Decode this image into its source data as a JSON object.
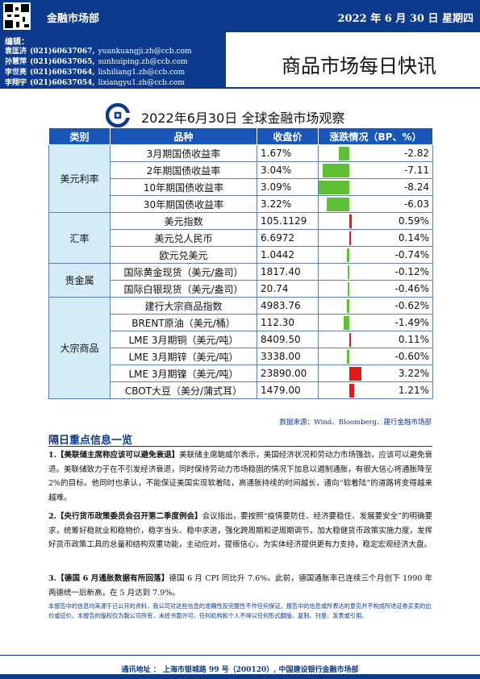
{
  "header": {
    "dept": "金融市场部",
    "date": "2022 年 6 月 30 日  星期四"
  },
  "editors": {
    "label": "编辑：",
    "list": [
      {
        "name": "袁匡济",
        "phone": "(021)60637067,",
        "email": "yuankuangji.zh@ccb.com"
      },
      {
        "name": "孙慧萍",
        "phone": "(021)60637065,",
        "email": "sunhuiping.zh@ccb.com"
      },
      {
        "name": "李世亮",
        "phone": "(021)60637064,",
        "email": "lishiliang1.zh@ccb.com"
      },
      {
        "name": "李翔宇",
        "phone": "(021)60637054,",
        "email": "lixiangyu1.zh@ccb.com"
      }
    ]
  },
  "report_title": "商品市场每日快讯",
  "table": {
    "title": "2022年6月30日 全球金融市场观察",
    "headers": [
      "类别",
      "品种",
      "收盘价",
      "涨跌情况（BP、%）"
    ],
    "groups": [
      {
        "category": "美元利率",
        "rows": [
          {
            "item": "3月期国债收益率",
            "price": "1.67%",
            "change": "-2.82",
            "value": -2.82
          },
          {
            "item": "2年期国债收益率",
            "price": "3.04%",
            "change": "-7.11",
            "value": -7.11
          },
          {
            "item": "10年期国债收益率",
            "price": "3.09%",
            "change": "-8.24",
            "value": -8.24
          },
          {
            "item": "30年期国债收益率",
            "price": "3.22%",
            "change": "-6.03",
            "value": -6.03
          }
        ]
      },
      {
        "category": "汇率",
        "rows": [
          {
            "item": "美元指数",
            "price": "105.1129",
            "change": "0.59%",
            "value": 0.59
          },
          {
            "item": "美元兑人民币",
            "price": "6.6972",
            "change": "0.14%",
            "value": 0.14
          },
          {
            "item": "欧元兑美元",
            "price": "1.0442",
            "change": "-0.74%",
            "value": -0.74
          }
        ]
      },
      {
        "category": "贵金属",
        "rows": [
          {
            "item": "国际黄金现货（美元/盎司）",
            "price": "1817.40",
            "change": "-0.12%",
            "value": -0.12
          },
          {
            "item": "国际白银现货（美元/盎司）",
            "price": "20.74",
            "change": "-0.46%",
            "value": -0.46
          }
        ]
      },
      {
        "category": "大宗商品",
        "rows": [
          {
            "item": "建行大宗商品指数",
            "price": "4983.76",
            "change": "-0.62%",
            "value": -0.62
          },
          {
            "item": "BRENT原油（美元/桶）",
            "price": "112.30",
            "change": "-1.49%",
            "value": -1.49
          },
          {
            "item": "LME 3月期铜（美元/吨）",
            "price": "8409.50",
            "change": "0.11%",
            "value": 0.11
          },
          {
            "item": "LME 3月期锌（美元/吨）",
            "price": "3338.00",
            "change": "-0.60%",
            "value": -0.6
          },
          {
            "item": "LME 3月期镍（美元/吨）",
            "price": "23890.00",
            "change": "3.22%",
            "value": 3.22
          },
          {
            "item": "CBOT大豆（美分/蒲式耳）",
            "price": "1479.00",
            "change": "1.21%",
            "value": 1.21
          }
        ]
      }
    ],
    "source": "数据来源：Wind、Bloomberg、建行金融市场部",
    "colors": {
      "negative": "#5fbf35",
      "positive": "#e41a1a",
      "highlight": "#e41a1a"
    }
  },
  "news": {
    "heading": "隔日重点信息一览",
    "items": [
      {
        "num": "1.",
        "title": "【美联储主席称应该可以避免衰退】",
        "body": "美联储主席鲍威尔表示，美国经济状况和劳动力市场强劲，应该可以避免衰退。美联储致力于在不引发经济衰退，同时保持劳动力市场稳固的情况下加息以遏制通胀，有很大信心将通胀降至 2%的目标。他同时也承认，不能保证美国实现软着陆，高通胀持续的时间越长，通向“软着陆”的道路将变得越来越难。"
      },
      {
        "num": "2.",
        "title": "【央行货币政策委员会召开第二季度例会】",
        "body": "会议指出，要按照“疫情要防住、经济要稳住、发展要安全”的明确要求，统筹好稳就业和稳物价，稳字当头、稳中求进，强化跨周期和逆周期调节，加大稳健货币政策实施力度，发挥好货币政策工具的总量和结构双重功能，主动应对，提振信心，为实体经济提供更有力支持，稳定宏观经济大盘。"
      },
      {
        "num": "3.",
        "title": "【德国 6 月通胀数据有所回落】",
        "body": "德国 6 月 CPI 同比升 7.6%。此前，德国通胀率已连续三个月创下 1990 年两德统一后新高，在 5 月达到 7.9%。"
      }
    ]
  },
  "disclaimer": "本报告中的信息均来源于已公开的资料，我公司对这些信息的准确性及完整性不作任何保证。报告中的信息或所表达的意见并不构成所述证券买卖的出价或征价。本报告的版权仅为我公司所有，未经书面许可，任何机构和个人不得以任何形式翻版、复制、刊登、发表或引用。",
  "footer": "通讯地址 ： 上海市银城路 99 号（200120）, 中国建设银行金融市场部"
}
